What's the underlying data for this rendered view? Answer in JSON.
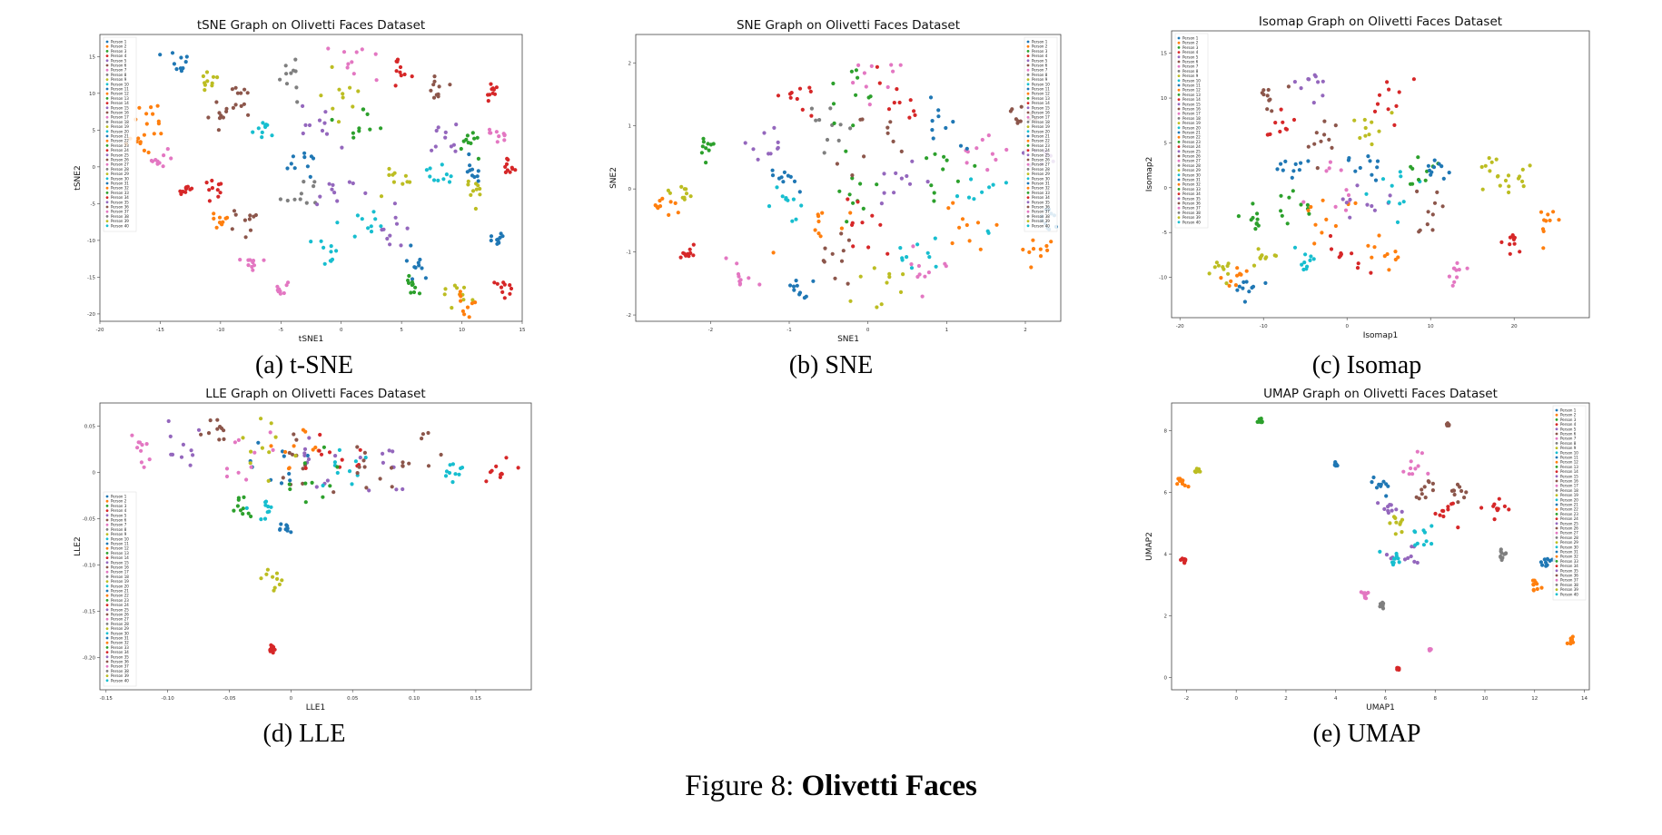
{
  "colors": [
    "#1f77b4",
    "#ff7f0e",
    "#2ca02c",
    "#d62728",
    "#9467bd",
    "#8c564b",
    "#e377c2",
    "#7f7f7f",
    "#bcbd22",
    "#17becf"
  ],
  "legend_labels": [
    "Person 1",
    "Person 2",
    "Person 3",
    "Person 4",
    "Person 5",
    "Person 6",
    "Person 7",
    "Person 8",
    "Person 9",
    "Person 10",
    "Person 11",
    "Person 12",
    "Person 13",
    "Person 14",
    "Person 15",
    "Person 16",
    "Person 17",
    "Person 18",
    "Person 19",
    "Person 20",
    "Person 21",
    "Person 22",
    "Person 23",
    "Person 24",
    "Person 25",
    "Person 26",
    "Person 27",
    "Person 28",
    "Person 29",
    "Person 30",
    "Person 31",
    "Person 32",
    "Person 33",
    "Person 34",
    "Person 35",
    "Person 36",
    "Person 37",
    "Person 38",
    "Person 39",
    "Person 40"
  ],
  "figure": {
    "prefix": "Figure 8: ",
    "title": "Olivetti Faces"
  },
  "captions": {
    "a": "(a) t-SNE",
    "b": "(b) SNE",
    "c": "(c) Isomap",
    "d": "(d) LLE",
    "e": "(e) UMAP"
  },
  "chart_data": [
    {
      "id": "tsne",
      "type": "scatter",
      "title": "tSNE Graph on Olivetti Faces Dataset",
      "xlabel": "tSNE1",
      "ylabel": "tSNE2",
      "xlim": [
        -20,
        15
      ],
      "ylim": [
        -21,
        18
      ],
      "xticks": [
        -20,
        -15,
        -10,
        -5,
        0,
        5,
        10,
        15
      ],
      "yticks": [
        -20,
        -15,
        -10,
        -5,
        0,
        5,
        10,
        15
      ],
      "legend": "upper-left",
      "clusters": [
        [
          -13.5,
          14,
          1.0,
          0
        ],
        [
          -16,
          6.5,
          1.2,
          1
        ],
        [
          -16.5,
          4,
          1.0,
          1
        ],
        [
          -11,
          12,
          0.6,
          8
        ],
        [
          -10,
          7,
          0.9,
          5
        ],
        [
          -15,
          0.5,
          1.0,
          6
        ],
        [
          -13,
          -3,
          0.6,
          3
        ],
        [
          -10.5,
          -3,
          0.7,
          3
        ],
        [
          -10,
          -7.5,
          0.6,
          1
        ],
        [
          -8,
          -7.5,
          1.0,
          5
        ],
        [
          -7.5,
          -13,
          0.6,
          6
        ],
        [
          -5,
          -16.5,
          0.5,
          6
        ],
        [
          -8,
          9.5,
          1.0,
          5
        ],
        [
          -6.5,
          5,
          1.0,
          9
        ],
        [
          -4,
          12,
          1.0,
          7
        ],
        [
          -3.5,
          -4,
          1.5,
          7
        ],
        [
          -2,
          6,
          1.5,
          4
        ],
        [
          1,
          15,
          1.5,
          6
        ],
        [
          0,
          10,
          2.0,
          8
        ],
        [
          2,
          5,
          2.0,
          2
        ],
        [
          -3,
          1,
          1.5,
          0
        ],
        [
          0,
          -2.5,
          1.5,
          4
        ],
        [
          2,
          -7,
          1.5,
          9
        ],
        [
          -1,
          -11,
          1.0,
          9
        ],
        [
          4,
          -9,
          1.2,
          4
        ],
        [
          5,
          -2,
          1.5,
          8
        ],
        [
          5,
          13.5,
          1.0,
          3
        ],
        [
          6,
          -13,
          1.2,
          0
        ],
        [
          6,
          -16.5,
          1.0,
          2
        ],
        [
          9.5,
          -17.5,
          1.2,
          8
        ],
        [
          10.5,
          -18.5,
          1.0,
          1
        ],
        [
          8,
          11,
          1.2,
          5
        ],
        [
          9,
          4,
          1.5,
          4
        ],
        [
          8,
          -1,
          1.2,
          9
        ],
        [
          11,
          -3.5,
          1.0,
          8
        ],
        [
          10.5,
          3.5,
          1.0,
          2
        ],
        [
          12.5,
          10,
          0.6,
          3
        ],
        [
          13,
          4.5,
          0.6,
          6
        ],
        [
          14,
          0,
          0.5,
          3
        ],
        [
          13,
          -10,
          0.4,
          0
        ],
        [
          13.5,
          -16,
          0.8,
          3
        ],
        [
          11,
          -1,
          0.8,
          0
        ]
      ]
    },
    {
      "id": "sne",
      "type": "scatter",
      "title": "SNE Graph on Olivetti Faces Dataset",
      "xlabel": "SNE1",
      "ylabel": "SNE2",
      "xlim": [
        -2.95,
        2.45
      ],
      "ylim": [
        -2.1,
        2.45
      ],
      "xticks": [
        -2,
        -1,
        0,
        1,
        2
      ],
      "yticks": [
        -2,
        -1,
        0,
        1,
        2
      ],
      "legend": "upper-right",
      "clusters": [
        [
          -2.6,
          -0.3,
          0.15,
          1
        ],
        [
          -2.4,
          -0.1,
          0.15,
          8
        ],
        [
          -2.3,
          -1.0,
          0.1,
          3
        ],
        [
          -2.05,
          0.7,
          0.15,
          2
        ],
        [
          -1.65,
          -1.5,
          0.2,
          6
        ],
        [
          -1.3,
          0.75,
          0.2,
          4
        ],
        [
          -1.1,
          0.2,
          0.2,
          0
        ],
        [
          -1.0,
          -0.3,
          0.25,
          9
        ],
        [
          -0.9,
          -1.6,
          0.15,
          0
        ],
        [
          -0.95,
          1.5,
          0.2,
          3
        ],
        [
          -0.7,
          -0.65,
          0.3,
          1
        ],
        [
          -0.5,
          1.0,
          0.3,
          7
        ],
        [
          -0.3,
          0.0,
          0.3,
          2
        ],
        [
          -0.2,
          -0.5,
          0.3,
          3
        ],
        [
          0.0,
          1.8,
          0.3,
          6
        ],
        [
          0.2,
          0.7,
          0.4,
          5
        ],
        [
          0.3,
          -0.2,
          0.4,
          4
        ],
        [
          0.5,
          1.4,
          0.3,
          3
        ],
        [
          0.6,
          -1.0,
          0.3,
          9
        ],
        [
          0.8,
          -1.3,
          0.3,
          6
        ],
        [
          1.0,
          0.3,
          0.3,
          2
        ],
        [
          1.2,
          -0.6,
          0.3,
          1
        ],
        [
          1.5,
          0.6,
          0.3,
          6
        ],
        [
          1.5,
          -0.2,
          0.3,
          9
        ],
        [
          1.9,
          1.1,
          0.2,
          5
        ],
        [
          2.2,
          0.5,
          0.15,
          4
        ],
        [
          2.3,
          -0.5,
          0.15,
          0
        ],
        [
          2.1,
          -0.9,
          0.2,
          1
        ],
        [
          -0.5,
          -1.1,
          0.3,
          5
        ],
        [
          0.1,
          -1.5,
          0.3,
          8
        ],
        [
          -0.2,
          1.4,
          0.4,
          2
        ],
        [
          0.9,
          0.9,
          0.3,
          0
        ]
      ]
    },
    {
      "id": "isomap",
      "type": "scatter",
      "title": "Isomap Graph on Olivetti Faces Dataset",
      "xlabel": "Isomap1",
      "ylabel": "Isomap2",
      "xlim": [
        -21,
        29
      ],
      "ylim": [
        -14.5,
        17.5
      ],
      "xticks": [
        -20,
        -10,
        0,
        10,
        20
      ],
      "yticks": [
        -10,
        -5,
        0,
        5,
        10,
        15
      ],
      "legend": "upper-left",
      "clusters": [
        [
          -15,
          -9,
          1.5,
          8
        ],
        [
          -13,
          -10,
          1.5,
          1
        ],
        [
          -12,
          -11,
          1.5,
          0
        ],
        [
          -10,
          -7.5,
          1.2,
          8
        ],
        [
          -9,
          10,
          1.5,
          5
        ],
        [
          -8,
          7,
          1.5,
          3
        ],
        [
          -7,
          2,
          2.0,
          0
        ],
        [
          -6,
          -2,
          2.0,
          2
        ],
        [
          -4,
          12,
          2.0,
          4
        ],
        [
          -3,
          6,
          2.5,
          5
        ],
        [
          -2,
          0,
          3.0,
          6
        ],
        [
          -2,
          -4,
          3.0,
          1
        ],
        [
          0,
          -8,
          2.5,
          3
        ],
        [
          1,
          3,
          2.5,
          0
        ],
        [
          2,
          -2,
          3.0,
          4
        ],
        [
          3,
          7,
          2.5,
          8
        ],
        [
          4,
          -7,
          2.5,
          1
        ],
        [
          6,
          0,
          2.5,
          9
        ],
        [
          8,
          2,
          2.0,
          2
        ],
        [
          9,
          -3,
          2.0,
          5
        ],
        [
          11,
          2,
          1.5,
          0
        ],
        [
          13,
          -9,
          1.5,
          6
        ],
        [
          17,
          2,
          2.0,
          8
        ],
        [
          20,
          1,
          1.5,
          8
        ],
        [
          20,
          -6,
          1.5,
          3
        ],
        [
          24,
          -4,
          1.5,
          1
        ],
        [
          -5,
          -8,
          1.5,
          9
        ],
        [
          5,
          10,
          2.0,
          3
        ],
        [
          -11,
          -3,
          1.5,
          2
        ]
      ]
    },
    {
      "id": "lle",
      "type": "scatter",
      "title": "LLE Graph on Olivetti Faces Dataset",
      "xlabel": "LLE1",
      "ylabel": "LLE2",
      "xlim": [
        -0.155,
        0.195
      ],
      "ylim": [
        -0.235,
        0.075
      ],
      "xticks": [
        -0.15,
        -0.1,
        -0.05,
        0.0,
        0.05,
        0.1,
        0.15
      ],
      "yticks": [
        -0.2,
        -0.15,
        -0.1,
        -0.05,
        0.0,
        0.05
      ],
      "legend": "lower-left",
      "clusters": [
        [
          -0.01,
          0.015,
          0.02,
          0
        ],
        [
          0.0,
          0.02,
          0.02,
          1
        ],
        [
          0.01,
          0.015,
          0.02,
          5
        ],
        [
          0.02,
          0.01,
          0.02,
          4
        ],
        [
          0.03,
          0.015,
          0.02,
          3
        ],
        [
          -0.02,
          0.02,
          0.02,
          8
        ],
        [
          -0.04,
          0.025,
          0.02,
          6
        ],
        [
          0.04,
          0.005,
          0.02,
          9
        ],
        [
          0.06,
          0.01,
          0.02,
          5
        ],
        [
          0.08,
          0.005,
          0.02,
          4
        ],
        [
          0.1,
          0.005,
          0.02,
          5
        ],
        [
          -0.09,
          0.035,
          0.015,
          4
        ],
        [
          -0.12,
          0.025,
          0.01,
          6
        ],
        [
          -0.06,
          0.045,
          0.01,
          5
        ],
        [
          -0.04,
          -0.035,
          0.01,
          2
        ],
        [
          -0.02,
          -0.04,
          0.01,
          9
        ],
        [
          -0.005,
          -0.06,
          0.004,
          0
        ],
        [
          -0.015,
          -0.115,
          0.008,
          8
        ],
        [
          -0.015,
          -0.19,
          0.003,
          3
        ],
        [
          0.02,
          -0.02,
          0.02,
          2
        ],
        [
          0.13,
          0.0,
          0.01,
          9
        ],
        [
          0.17,
          0.0,
          0.01,
          3
        ]
      ]
    },
    {
      "id": "umap",
      "type": "scatter",
      "title": "UMAP Graph on Olivetti Faces Dataset",
      "xlabel": "UMAP1",
      "ylabel": "UMAP2",
      "xlim": [
        -2.6,
        14.2
      ],
      "ylim": [
        -0.4,
        8.9
      ],
      "xticks": [
        -2,
        0,
        2,
        4,
        6,
        8,
        10,
        12,
        14
      ],
      "yticks": [
        0,
        2,
        4,
        6,
        8
      ],
      "legend": "upper-right",
      "clusters": [
        [
          -2.2,
          6.3,
          0.15,
          1
        ],
        [
          -1.5,
          6.7,
          0.15,
          8
        ],
        [
          -2.1,
          3.8,
          0.1,
          3
        ],
        [
          1.0,
          8.3,
          0.1,
          2
        ],
        [
          4.0,
          6.9,
          0.05,
          0
        ],
        [
          5.2,
          2.7,
          0.1,
          6
        ],
        [
          5.6,
          6.3,
          0.4,
          0
        ],
        [
          6.0,
          5.5,
          0.4,
          4
        ],
        [
          6.5,
          5.0,
          0.5,
          8
        ],
        [
          7.0,
          7.0,
          0.5,
          6
        ],
        [
          7.5,
          6.0,
          0.5,
          5
        ],
        [
          6.8,
          4.0,
          0.5,
          4
        ],
        [
          7.5,
          4.5,
          0.5,
          9
        ],
        [
          8.5,
          5.5,
          0.5,
          3
        ],
        [
          9.0,
          6.0,
          0.4,
          5
        ],
        [
          10.5,
          5.5,
          0.4,
          3
        ],
        [
          10.7,
          4.0,
          0.2,
          7
        ],
        [
          12.0,
          3.0,
          0.2,
          1
        ],
        [
          12.5,
          3.7,
          0.3,
          0
        ],
        [
          13.5,
          1.2,
          0.15,
          1
        ],
        [
          5.9,
          2.3,
          0.1,
          7
        ],
        [
          7.8,
          0.9,
          0.05,
          6
        ],
        [
          6.5,
          0.3,
          0.05,
          3
        ],
        [
          8.5,
          8.2,
          0.05,
          5
        ],
        [
          6.2,
          3.8,
          0.4,
          9
        ]
      ]
    }
  ]
}
